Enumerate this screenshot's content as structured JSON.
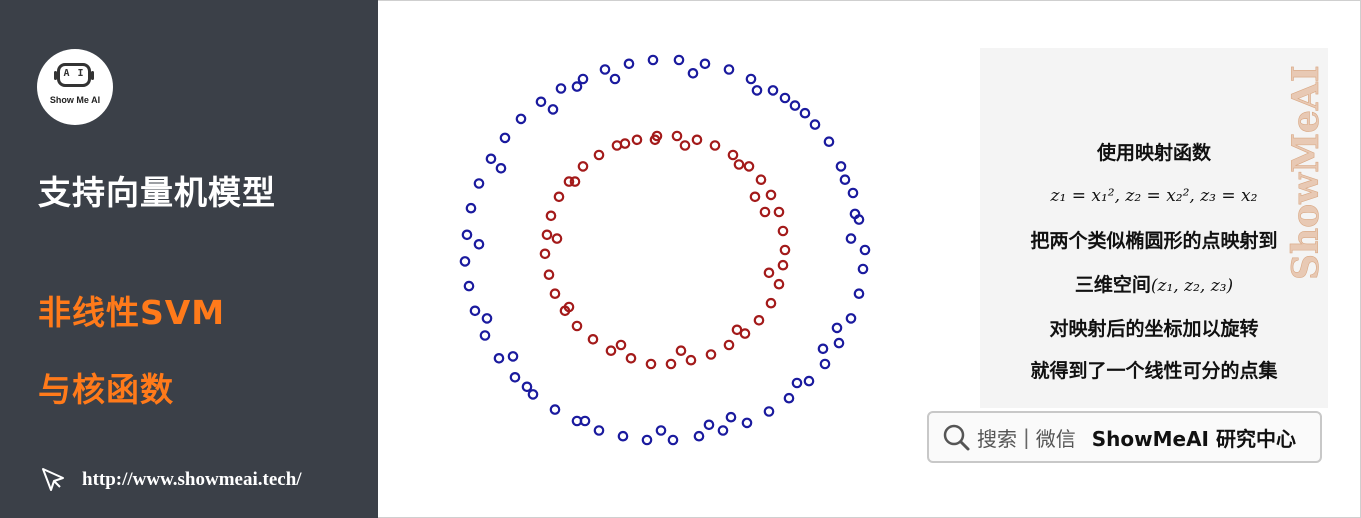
{
  "sidebar": {
    "logo_text": "Show Me AI",
    "logo_face_text": "A I",
    "title": "支持向量机模型",
    "subtitle_line1": "非线性SVM",
    "subtitle_line2": "与核函数",
    "url": "http://www.showmeai.tech/"
  },
  "explanation": {
    "line1": "使用映射函数",
    "formula": "z₁ = x₁², z₂ = x₂², z₃ = x₂",
    "line2": "把两个类似椭圆形的点映射到",
    "line3_prefix": "三维空间",
    "line3_math": "(z₁, z₂, z₃)",
    "line4": "对映射后的坐标加以旋转",
    "line5": "就得到了一个线性可分的点集"
  },
  "watermark": "ShowMeAI",
  "search": {
    "label": "搜索",
    "separator": "|",
    "label2": "微信",
    "brand": "ShowMeAI 研究中心"
  },
  "chart_data": {
    "type": "scatter",
    "title": "",
    "xlabel": "",
    "ylabel": "",
    "xlim": [
      -1.3,
      1.3
    ],
    "ylim": [
      -1.3,
      1.3
    ],
    "grid": false,
    "series": [
      {
        "color": "#1a1a9e",
        "marker": "open-circle",
        "points": [
          [
            1.0,
            0.0
          ],
          [
            0.97,
            0.16
          ],
          [
            0.94,
            0.3
          ],
          [
            0.88,
            0.44
          ],
          [
            0.82,
            0.57
          ],
          [
            0.75,
            0.66
          ],
          [
            0.65,
            0.76
          ],
          [
            0.54,
            0.84
          ],
          [
            0.43,
            0.9
          ],
          [
            0.32,
            0.95
          ],
          [
            0.2,
            0.98
          ],
          [
            0.07,
            1.0
          ],
          [
            -0.06,
            1.0
          ],
          [
            -0.18,
            0.98
          ],
          [
            -0.3,
            0.95
          ],
          [
            -0.41,
            0.9
          ],
          [
            -0.52,
            0.85
          ],
          [
            -0.62,
            0.78
          ],
          [
            -0.72,
            0.69
          ],
          [
            -0.8,
            0.59
          ],
          [
            -0.87,
            0.48
          ],
          [
            -0.93,
            0.35
          ],
          [
            -0.97,
            0.22
          ],
          [
            -0.99,
            0.08
          ],
          [
            -1.0,
            -0.06
          ],
          [
            -0.98,
            -0.19
          ],
          [
            -0.95,
            -0.32
          ],
          [
            -0.9,
            -0.45
          ],
          [
            -0.83,
            -0.57
          ],
          [
            -0.75,
            -0.67
          ],
          [
            -0.66,
            -0.76
          ],
          [
            -0.55,
            -0.84
          ],
          [
            -0.44,
            -0.9
          ],
          [
            -0.33,
            -0.95
          ],
          [
            -0.21,
            -0.98
          ],
          [
            -0.09,
            -1.0
          ],
          [
            0.04,
            -1.0
          ],
          [
            0.17,
            -0.98
          ],
          [
            0.29,
            -0.95
          ],
          [
            0.41,
            -0.91
          ],
          [
            0.52,
            -0.85
          ],
          [
            0.62,
            -0.78
          ],
          [
            0.72,
            -0.69
          ],
          [
            0.8,
            -0.6
          ],
          [
            0.87,
            -0.49
          ],
          [
            0.93,
            -0.36
          ],
          [
            0.97,
            -0.23
          ],
          [
            0.99,
            -0.1
          ],
          [
            0.93,
            0.06
          ],
          [
            0.9,
            0.37
          ],
          [
            0.7,
            0.72
          ],
          [
            0.46,
            0.84
          ],
          [
            0.14,
            0.93
          ],
          [
            -0.25,
            0.9
          ],
          [
            -0.56,
            0.74
          ],
          [
            -0.82,
            0.43
          ],
          [
            -0.93,
            0.03
          ],
          [
            -0.89,
            -0.36
          ],
          [
            -0.69,
            -0.72
          ],
          [
            -0.4,
            -0.9
          ],
          [
            -0.02,
            -0.95
          ],
          [
            0.33,
            -0.88
          ],
          [
            0.66,
            -0.7
          ],
          [
            0.86,
            -0.41
          ],
          [
            0.95,
            0.19
          ],
          [
            0.6,
            0.8
          ],
          [
            -0.44,
            0.86
          ],
          [
            -0.76,
            -0.56
          ],
          [
            0.22,
            -0.92
          ],
          [
            0.79,
            -0.52
          ]
        ]
      },
      {
        "color": "#a31a1a",
        "marker": "open-circle",
        "points": [
          [
            0.6,
            0.0
          ],
          [
            0.59,
            0.1
          ],
          [
            0.57,
            0.2
          ],
          [
            0.53,
            0.29
          ],
          [
            0.48,
            0.37
          ],
          [
            0.42,
            0.44
          ],
          [
            0.34,
            0.5
          ],
          [
            0.25,
            0.55
          ],
          [
            0.16,
            0.58
          ],
          [
            0.06,
            0.6
          ],
          [
            -0.04,
            0.6
          ],
          [
            -0.14,
            0.58
          ],
          [
            -0.24,
            0.55
          ],
          [
            -0.33,
            0.5
          ],
          [
            -0.41,
            0.44
          ],
          [
            -0.48,
            0.36
          ],
          [
            -0.53,
            0.28
          ],
          [
            -0.57,
            0.18
          ],
          [
            -0.59,
            0.08
          ],
          [
            -0.6,
            -0.02
          ],
          [
            -0.58,
            -0.13
          ],
          [
            -0.55,
            -0.23
          ],
          [
            -0.5,
            -0.32
          ],
          [
            -0.44,
            -0.4
          ],
          [
            -0.36,
            -0.47
          ],
          [
            -0.27,
            -0.53
          ],
          [
            -0.17,
            -0.57
          ],
          [
            -0.07,
            -0.6
          ],
          [
            0.03,
            -0.6
          ],
          [
            0.13,
            -0.58
          ],
          [
            0.23,
            -0.55
          ],
          [
            0.32,
            -0.5
          ],
          [
            0.4,
            -0.44
          ],
          [
            0.47,
            -0.37
          ],
          [
            0.53,
            -0.28
          ],
          [
            0.57,
            -0.18
          ],
          [
            0.59,
            -0.08
          ],
          [
            0.5,
            0.2
          ],
          [
            0.37,
            0.45
          ],
          [
            0.1,
            0.55
          ],
          [
            -0.2,
            0.56
          ],
          [
            -0.45,
            0.36
          ],
          [
            -0.54,
            0.06
          ],
          [
            -0.48,
            -0.3
          ],
          [
            -0.22,
            -0.5
          ],
          [
            0.08,
            -0.53
          ],
          [
            0.36,
            -0.42
          ],
          [
            0.52,
            -0.12
          ],
          [
            -0.05,
            0.58
          ],
          [
            0.45,
            0.28
          ]
        ]
      }
    ]
  }
}
